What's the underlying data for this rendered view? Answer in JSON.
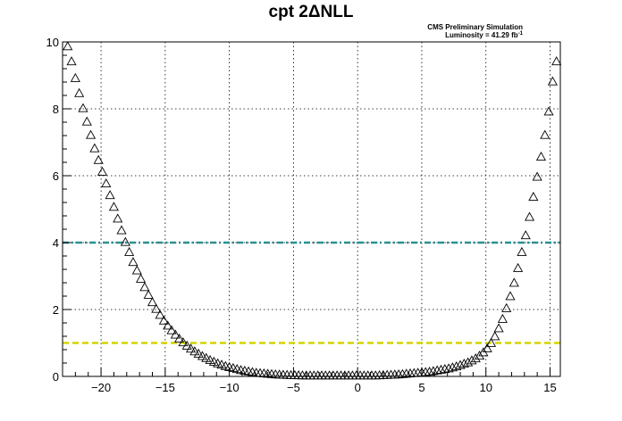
{
  "chart_data": {
    "type": "scatter",
    "title": "cpt 2ΔNLL",
    "xlabel": "",
    "ylabel": "",
    "xlim": [
      -23,
      15.8
    ],
    "ylim": [
      0,
      10
    ],
    "grid": true,
    "x_ticks": [
      -20,
      -15,
      -10,
      -5,
      0,
      5,
      10,
      15
    ],
    "y_ticks": [
      0,
      2,
      4,
      6,
      8,
      10
    ],
    "annotations": [
      {
        "text": "CMS Preliminary Simulation",
        "superscript": ""
      },
      {
        "text": "Luminosity = 41.29 fb",
        "superscript": "-1"
      }
    ],
    "reference_lines": [
      {
        "y": 4,
        "color": "#2a8f8f",
        "style": "dash-dot"
      },
      {
        "y": 1,
        "color": "#d4d400",
        "style": "dashed"
      }
    ],
    "marker": "open-triangle",
    "series": [
      {
        "x": [
          -22.6,
          -22.3,
          -22.0,
          -21.7,
          -21.4,
          -21.1,
          -20.8,
          -20.5,
          -20.2,
          -19.9,
          -19.6,
          -19.3,
          -19.0,
          -18.7,
          -18.4,
          -18.1,
          -17.8,
          -17.5,
          -17.2,
          -16.9,
          -16.6,
          -16.3,
          -16.0,
          -15.7,
          -15.4,
          -15.1,
          -14.8,
          -14.5,
          -14.2,
          -13.9,
          -13.6,
          -13.3,
          -13.0,
          -12.7,
          -12.4,
          -12.1,
          -11.8,
          -11.5,
          -11.2,
          -10.9,
          -10.6,
          -10.3,
          -10.0,
          -9.7,
          -9.4,
          -9.1,
          -8.8,
          -8.5,
          -8.2,
          -7.9,
          -7.6,
          -7.3,
          -7.0,
          -6.7,
          -6.4,
          -6.1,
          -5.8,
          -5.5,
          -5.2,
          -4.9,
          -4.6,
          -4.3,
          -4.0,
          -3.7,
          -3.4,
          -3.1,
          -2.8,
          -2.5,
          -2.2,
          -1.9,
          -1.6,
          -1.3,
          -1.0,
          -0.7,
          -0.4,
          -0.1,
          0.2,
          0.5,
          0.8,
          1.1,
          1.4,
          1.7,
          2.0,
          2.3,
          2.6,
          2.9,
          3.2,
          3.5,
          3.8,
          4.1,
          4.4,
          4.7,
          5.0,
          5.3,
          5.6,
          5.9,
          6.2,
          6.5,
          6.8,
          7.1,
          7.4,
          7.7,
          8.0,
          8.3,
          8.6,
          8.9,
          9.2,
          9.5,
          9.8,
          10.1,
          10.4,
          10.7,
          11.0,
          11.3,
          11.6,
          11.9,
          12.2,
          12.5,
          12.8,
          13.1,
          13.4,
          13.7,
          14.0,
          14.3,
          14.6,
          14.9,
          15.2,
          15.5
        ],
        "y": [
          9.85,
          9.4,
          8.9,
          8.45,
          8.0,
          7.6,
          7.2,
          6.8,
          6.45,
          6.1,
          5.75,
          5.4,
          5.05,
          4.7,
          4.35,
          4.0,
          3.7,
          3.4,
          3.15,
          2.9,
          2.65,
          2.42,
          2.2,
          2.0,
          1.82,
          1.65,
          1.5,
          1.36,
          1.23,
          1.11,
          1.0,
          0.9,
          0.81,
          0.73,
          0.66,
          0.59,
          0.53,
          0.47,
          0.42,
          0.37,
          0.33,
          0.29,
          0.26,
          0.23,
          0.2,
          0.17,
          0.15,
          0.13,
          0.11,
          0.09,
          0.08,
          0.07,
          0.06,
          0.05,
          0.04,
          0.035,
          0.03,
          0.025,
          0.02,
          0.017,
          0.014,
          0.012,
          0.01,
          0.01,
          0.01,
          0.01,
          0.01,
          0.01,
          0.01,
          0.01,
          0.01,
          0.01,
          0.01,
          0.01,
          0.01,
          0.01,
          0.01,
          0.01,
          0.01,
          0.01,
          0.01,
          0.015,
          0.02,
          0.025,
          0.03,
          0.035,
          0.04,
          0.05,
          0.06,
          0.07,
          0.08,
          0.09,
          0.1,
          0.11,
          0.12,
          0.14,
          0.16,
          0.18,
          0.2,
          0.22,
          0.25,
          0.28,
          0.32,
          0.36,
          0.4,
          0.46,
          0.52,
          0.6,
          0.7,
          0.82,
          0.98,
          1.18,
          1.42,
          1.7,
          2.02,
          2.38,
          2.78,
          3.22,
          3.7,
          4.2,
          4.75,
          5.35,
          5.95,
          6.55,
          7.2,
          7.9,
          8.8,
          9.4
        ]
      }
    ]
  }
}
